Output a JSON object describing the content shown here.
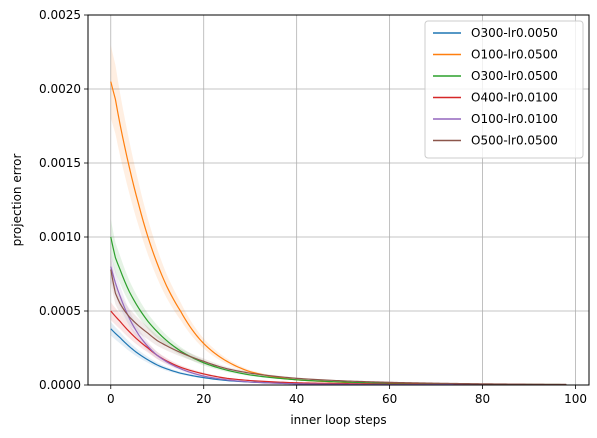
{
  "chart_data": {
    "type": "line",
    "xlabel": "inner loop steps",
    "ylabel": "projection error",
    "xlim": [
      -4.9,
      102.9
    ],
    "ylim": [
      0,
      0.0025
    ],
    "xticks": [
      0,
      20,
      40,
      60,
      80,
      100
    ],
    "yticks": [
      0.0,
      0.0005,
      0.001,
      0.0015,
      0.002,
      0.0025
    ],
    "ytick_labels": [
      "0.0000",
      "0.0005",
      "0.0010",
      "0.0015",
      "0.0020",
      "0.0025"
    ],
    "xtick_labels": [
      "0",
      "20",
      "40",
      "60",
      "80",
      "100"
    ],
    "grid": true,
    "legend_position": "top-right",
    "x_end": 98,
    "series": [
      {
        "name": "O300-lr0.0050",
        "color": "#1f77b4",
        "x": [
          0,
          2,
          4,
          6,
          8,
          10,
          15,
          20,
          25,
          30,
          40,
          60,
          80,
          98
        ],
        "values": [
          0.00038,
          0.00032,
          0.00026,
          0.00021,
          0.00017,
          0.000135,
          8e-05,
          5e-05,
          3e-05,
          2e-05,
          1e-05,
          4e-06,
          2e-06,
          1e-06
        ]
      },
      {
        "name": "O100-lr0.0500",
        "color": "#ff7f0e",
        "x": [
          0,
          1,
          2,
          3,
          4,
          6,
          8,
          10,
          12,
          15,
          20,
          25,
          30,
          40,
          50,
          60,
          80,
          98
        ],
        "values": [
          0.00205,
          0.00193,
          0.00176,
          0.00161,
          0.00147,
          0.00122,
          0.001,
          0.00082,
          0.00067,
          0.0005,
          0.00028,
          0.00016,
          9e-05,
          3.5e-05,
          1.8e-05,
          1e-05,
          4e-06,
          2e-06
        ]
      },
      {
        "name": "O300-lr0.0500",
        "color": "#2ca02c",
        "x": [
          0,
          1,
          2,
          3,
          4,
          6,
          8,
          10,
          15,
          20,
          25,
          30,
          40,
          50,
          60,
          80,
          98
        ],
        "values": [
          0.001,
          0.00086,
          0.00078,
          0.0007,
          0.00063,
          0.00052,
          0.00043,
          0.00036,
          0.00023,
          0.00015,
          0.0001,
          6.8e-05,
          3.5e-05,
          2e-05,
          1.2e-05,
          6e-06,
          3e-06
        ]
      },
      {
        "name": "O400-lr0.0100",
        "color": "#d62728",
        "x": [
          0,
          2,
          4,
          6,
          8,
          10,
          15,
          20,
          25,
          30,
          40,
          60,
          80,
          98
        ],
        "values": [
          0.0005,
          0.00043,
          0.00036,
          0.0003,
          0.00025,
          0.0002,
          0.00012,
          7.5e-05,
          4.5e-05,
          3e-05,
          1.5e-05,
          6e-06,
          3e-06,
          2e-06
        ]
      },
      {
        "name": "O100-lr0.0100",
        "color": "#9467bd",
        "x": [
          0,
          1,
          2,
          3,
          4,
          6,
          8,
          10,
          15,
          20,
          25,
          30,
          40,
          60,
          80,
          98
        ],
        "values": [
          0.0008,
          0.00069,
          0.0006,
          0.00052,
          0.00045,
          0.00034,
          0.00026,
          0.0002,
          0.00011,
          6e-05,
          3.5e-05,
          2e-05,
          8e-06,
          3e-06,
          2e-06,
          1e-06
        ]
      },
      {
        "name": "O500-lr0.0500",
        "color": "#8c564b",
        "x": [
          0,
          1,
          2,
          3,
          4,
          6,
          8,
          10,
          15,
          20,
          25,
          30,
          40,
          50,
          60,
          80,
          98
        ],
        "values": [
          0.00078,
          0.00062,
          0.00055,
          0.0005,
          0.00046,
          0.0004,
          0.00035,
          0.0003,
          0.00022,
          0.00016,
          0.00011,
          8e-05,
          4.5e-05,
          2.8e-05,
          1.8e-05,
          8e-06,
          4e-06
        ]
      }
    ]
  }
}
